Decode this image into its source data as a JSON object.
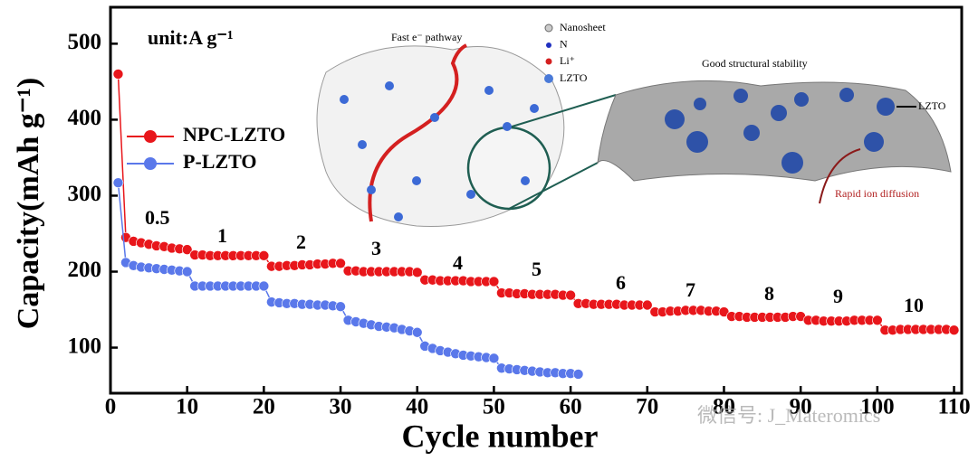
{
  "chart_data": {
    "type": "line",
    "xlabel": "Cycle number",
    "ylabel": "Capacity(mAh g⁻¹)",
    "xlim": [
      0,
      111
    ],
    "xticks": [
      0,
      10,
      20,
      30,
      40,
      50,
      60,
      70,
      80,
      90,
      100,
      110
    ],
    "ylim": [
      40,
      548
    ],
    "yticks": [
      100,
      200,
      300,
      400,
      500
    ],
    "x": [
      1,
      2,
      3,
      4,
      5,
      6,
      7,
      8,
      9,
      10,
      11,
      12,
      13,
      14,
      15,
      16,
      17,
      18,
      19,
      20,
      21,
      22,
      23,
      24,
      25,
      26,
      27,
      28,
      29,
      30,
      31,
      32,
      33,
      34,
      35,
      36,
      37,
      38,
      39,
      40,
      41,
      42,
      43,
      44,
      45,
      46,
      47,
      48,
      49,
      50,
      51,
      52,
      53,
      54,
      55,
      56,
      57,
      58,
      59,
      60,
      61,
      62,
      63,
      64,
      65,
      66,
      67,
      68,
      69,
      70,
      71,
      72,
      73,
      74,
      75,
      76,
      77,
      78,
      79,
      80,
      81,
      82,
      83,
      84,
      85,
      86,
      87,
      88,
      89,
      90,
      91,
      92,
      93,
      94,
      95,
      96,
      97,
      98,
      99,
      100,
      101,
      102,
      103,
      104,
      105,
      106,
      107,
      108,
      109,
      110
    ],
    "series": [
      {
        "name": "NPC-LZTO",
        "color": "#e8161b",
        "values": [
          460,
          245,
          240,
          238,
          236,
          234,
          233,
          231,
          230,
          229,
          222,
          222,
          221,
          221,
          221,
          221,
          221,
          221,
          221,
          221,
          207,
          207,
          208,
          208,
          209,
          209,
          210,
          210,
          211,
          211,
          201,
          201,
          200,
          200,
          200,
          200,
          200,
          200,
          200,
          199,
          189,
          189,
          188,
          188,
          188,
          188,
          187,
          187,
          187,
          187,
          172,
          172,
          171,
          171,
          170,
          170,
          170,
          170,
          169,
          169,
          158,
          158,
          157,
          157,
          157,
          157,
          156,
          156,
          156,
          156,
          147,
          147,
          148,
          148,
          149,
          149,
          149,
          148,
          148,
          147,
          141,
          141,
          140,
          140,
          140,
          140,
          140,
          140,
          141,
          141,
          136,
          136,
          135,
          135,
          135,
          135,
          136,
          136,
          136,
          136,
          123,
          123,
          124,
          124,
          124,
          124,
          124,
          124,
          124,
          123
        ]
      },
      {
        "name": "P-LZTO",
        "color": "#5a78ea",
        "values": [
          317,
          212,
          208,
          206,
          205,
          204,
          203,
          202,
          201,
          200,
          181,
          181,
          181,
          181,
          181,
          181,
          181,
          181,
          181,
          181,
          160,
          159,
          158,
          158,
          157,
          157,
          156,
          156,
          155,
          154,
          136,
          134,
          132,
          130,
          128,
          127,
          126,
          124,
          122,
          120,
          102,
          99,
          96,
          94,
          92,
          90,
          89,
          88,
          87,
          86,
          73,
          72,
          71,
          70,
          69,
          68,
          67,
          67,
          66,
          66,
          65,
          null,
          null,
          null,
          null,
          null,
          null,
          null,
          null,
          null,
          null,
          null,
          null,
          null,
          null,
          null,
          null,
          null,
          null,
          null,
          null,
          null,
          null,
          null,
          null,
          null,
          null,
          null,
          null,
          null,
          null,
          null,
          null,
          null,
          null,
          null,
          null,
          null,
          null,
          null,
          null,
          null,
          null,
          null,
          null,
          null,
          null,
          null,
          null,
          null
        ]
      }
    ],
    "annotations": [
      "unit:A g⁻¹",
      "0.5",
      "1",
      "2",
      "3",
      "4",
      "5",
      "6",
      "7",
      "8",
      "9",
      "10"
    ],
    "inset": {
      "left_title": "Fast e⁻ pathway",
      "legend": [
        "Nanosheet",
        "N",
        "Li⁺",
        "LZTO"
      ],
      "right_title": "Good structural stability",
      "right_label": "LZTO",
      "right_caption": "Rapid ion diffusion"
    },
    "watermark": "微信号: J_Materomics"
  }
}
